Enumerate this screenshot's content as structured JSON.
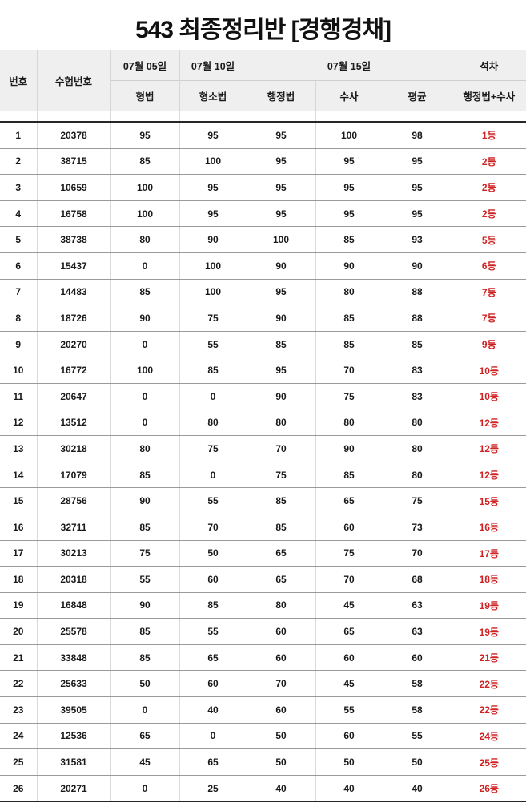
{
  "title": "543 최종정리반 [경행경채]",
  "colors": {
    "accent_red": "#cf2222",
    "header_bg": "#efefef"
  },
  "table": {
    "headers": {
      "no": "번호",
      "exam_no": "수험번호",
      "date_1": "07월 05일",
      "date_2": "07월 10일",
      "date_3": "07월 15일",
      "rank": "석차",
      "subject_1": "형법",
      "subject_2": "형소법",
      "subject_3": "행정법",
      "subject_4": "수사",
      "subject_5": "평균",
      "rank_detail": "행정법+수사"
    },
    "rows": [
      {
        "no": "1",
        "exam_no": "20378",
        "criminal_law": "95",
        "criminal_procedure": "95",
        "admin_law": "95",
        "investigation": "100",
        "average": "98",
        "rank": "1등"
      },
      {
        "no": "2",
        "exam_no": "38715",
        "criminal_law": "85",
        "criminal_procedure": "100",
        "admin_law": "95",
        "investigation": "95",
        "average": "95",
        "rank": "2등"
      },
      {
        "no": "3",
        "exam_no": "10659",
        "criminal_law": "100",
        "criminal_procedure": "95",
        "admin_law": "95",
        "investigation": "95",
        "average": "95",
        "rank": "2등"
      },
      {
        "no": "4",
        "exam_no": "16758",
        "criminal_law": "100",
        "criminal_procedure": "95",
        "admin_law": "95",
        "investigation": "95",
        "average": "95",
        "rank": "2등"
      },
      {
        "no": "5",
        "exam_no": "38738",
        "criminal_law": "80",
        "criminal_procedure": "90",
        "admin_law": "100",
        "investigation": "85",
        "average": "93",
        "rank": "5등"
      },
      {
        "no": "6",
        "exam_no": "15437",
        "criminal_law": "0",
        "criminal_procedure": "100",
        "admin_law": "90",
        "investigation": "90",
        "average": "90",
        "rank": "6등"
      },
      {
        "no": "7",
        "exam_no": "14483",
        "criminal_law": "85",
        "criminal_procedure": "100",
        "admin_law": "95",
        "investigation": "80",
        "average": "88",
        "rank": "7등"
      },
      {
        "no": "8",
        "exam_no": "18726",
        "criminal_law": "90",
        "criminal_procedure": "75",
        "admin_law": "90",
        "investigation": "85",
        "average": "88",
        "rank": "7등"
      },
      {
        "no": "9",
        "exam_no": "20270",
        "criminal_law": "0",
        "criminal_procedure": "55",
        "admin_law": "85",
        "investigation": "85",
        "average": "85",
        "rank": "9등"
      },
      {
        "no": "10",
        "exam_no": "16772",
        "criminal_law": "100",
        "criminal_procedure": "85",
        "admin_law": "95",
        "investigation": "70",
        "average": "83",
        "rank": "10등"
      },
      {
        "no": "11",
        "exam_no": "20647",
        "criminal_law": "0",
        "criminal_procedure": "0",
        "admin_law": "90",
        "investigation": "75",
        "average": "83",
        "rank": "10등"
      },
      {
        "no": "12",
        "exam_no": "13512",
        "criminal_law": "0",
        "criminal_procedure": "80",
        "admin_law": "80",
        "investigation": "80",
        "average": "80",
        "rank": "12등"
      },
      {
        "no": "13",
        "exam_no": "30218",
        "criminal_law": "80",
        "criminal_procedure": "75",
        "admin_law": "70",
        "investigation": "90",
        "average": "80",
        "rank": "12등"
      },
      {
        "no": "14",
        "exam_no": "17079",
        "criminal_law": "85",
        "criminal_procedure": "0",
        "admin_law": "75",
        "investigation": "85",
        "average": "80",
        "rank": "12등"
      },
      {
        "no": "15",
        "exam_no": "28756",
        "criminal_law": "90",
        "criminal_procedure": "55",
        "admin_law": "85",
        "investigation": "65",
        "average": "75",
        "rank": "15등"
      },
      {
        "no": "16",
        "exam_no": "32711",
        "criminal_law": "85",
        "criminal_procedure": "70",
        "admin_law": "85",
        "investigation": "60",
        "average": "73",
        "rank": "16등"
      },
      {
        "no": "17",
        "exam_no": "30213",
        "criminal_law": "75",
        "criminal_procedure": "50",
        "admin_law": "65",
        "investigation": "75",
        "average": "70",
        "rank": "17등"
      },
      {
        "no": "18",
        "exam_no": "20318",
        "criminal_law": "55",
        "criminal_procedure": "60",
        "admin_law": "65",
        "investigation": "70",
        "average": "68",
        "rank": "18등"
      },
      {
        "no": "19",
        "exam_no": "16848",
        "criminal_law": "90",
        "criminal_procedure": "85",
        "admin_law": "80",
        "investigation": "45",
        "average": "63",
        "rank": "19등"
      },
      {
        "no": "20",
        "exam_no": "25578",
        "criminal_law": "85",
        "criminal_procedure": "55",
        "admin_law": "60",
        "investigation": "65",
        "average": "63",
        "rank": "19등"
      },
      {
        "no": "21",
        "exam_no": "33848",
        "criminal_law": "85",
        "criminal_procedure": "65",
        "admin_law": "60",
        "investigation": "60",
        "average": "60",
        "rank": "21등"
      },
      {
        "no": "22",
        "exam_no": "25633",
        "criminal_law": "50",
        "criminal_procedure": "60",
        "admin_law": "70",
        "investigation": "45",
        "average": "58",
        "rank": "22등"
      },
      {
        "no": "23",
        "exam_no": "39505",
        "criminal_law": "0",
        "criminal_procedure": "40",
        "admin_law": "60",
        "investigation": "55",
        "average": "58",
        "rank": "22등"
      },
      {
        "no": "24",
        "exam_no": "12536",
        "criminal_law": "65",
        "criminal_procedure": "0",
        "admin_law": "50",
        "investigation": "60",
        "average": "55",
        "rank": "24등"
      },
      {
        "no": "25",
        "exam_no": "31581",
        "criminal_law": "45",
        "criminal_procedure": "65",
        "admin_law": "50",
        "investigation": "50",
        "average": "50",
        "rank": "25등"
      },
      {
        "no": "26",
        "exam_no": "20271",
        "criminal_law": "0",
        "criminal_procedure": "25",
        "admin_law": "40",
        "investigation": "40",
        "average": "40",
        "rank": "26등"
      }
    ]
  }
}
